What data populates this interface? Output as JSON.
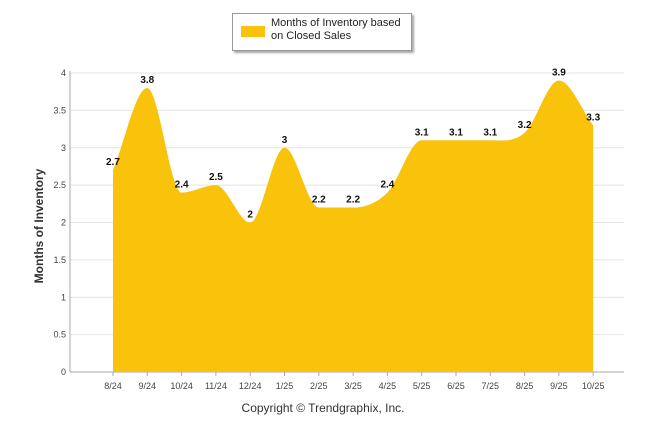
{
  "chart_data": {
    "type": "area",
    "categories": [
      "8/24",
      "9/24",
      "10/24",
      "11/24",
      "12/24",
      "1/25",
      "2/25",
      "3/25",
      "4/25",
      "5/25",
      "6/25",
      "7/25",
      "8/25",
      "9/25",
      "10/25"
    ],
    "series": [
      {
        "name": "Months of Inventory based on Closed Sales",
        "values": [
          2.7,
          3.8,
          2.4,
          2.5,
          2.0,
          3.0,
          2.2,
          2.2,
          2.4,
          3.1,
          3.1,
          3.1,
          3.2,
          3.9,
          3.3
        ],
        "labels": [
          "2.7",
          "3.8",
          "2.4",
          "2.5",
          "2",
          "3",
          "2.2",
          "2.2",
          "2.4",
          "3.1",
          "3.1",
          "3.1",
          "3.2",
          "3.9",
          "3.3"
        ],
        "color": "#f8c30a"
      }
    ],
    "ylabel": "Months of Inventory",
    "xlabel": "",
    "ylim": [
      0,
      4
    ],
    "yticks": [
      "0",
      "0.5",
      "1",
      "1.5",
      "2",
      "2.5",
      "3",
      "3.5",
      "4"
    ],
    "grid": true,
    "legend_position": "top-center",
    "footer": "Copyright © Trendgraphix, Inc."
  }
}
